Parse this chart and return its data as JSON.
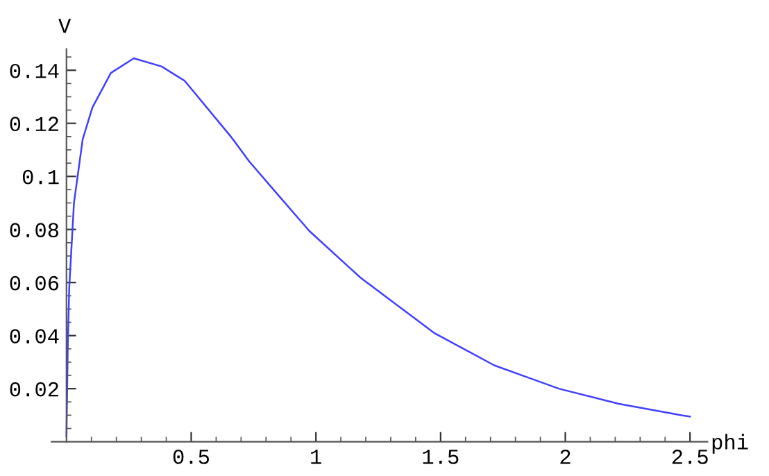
{
  "chart_data": {
    "type": "line",
    "xlabel": "phi",
    "ylabel": "V",
    "x": [
      0,
      0.005,
      0.011,
      0.03,
      0.065,
      0.104,
      0.178,
      0.27,
      0.382,
      0.474,
      0.659,
      0.733,
      0.844,
      0.974,
      1.178,
      1.474,
      1.715,
      1.974,
      2.215,
      2.47,
      2.5
    ],
    "series": [
      {
        "color": "#4040ff",
        "values": [
          0.002,
          0.035,
          0.058,
          0.09,
          0.114,
          0.126,
          0.139,
          0.1445,
          0.1414,
          0.136,
          0.115,
          0.1056,
          0.0935,
          0.0794,
          0.0619,
          0.041,
          0.0288,
          0.02,
          0.0143,
          0.0099,
          0.0095
        ]
      }
    ],
    "xlim": [
      -0.06,
      2.57
    ],
    "ylim": [
      0,
      0.148
    ],
    "xticks": [
      0.5,
      1,
      1.5,
      2,
      2.5
    ],
    "yticks": [
      0.02,
      0.04,
      0.06,
      0.08,
      0.1,
      0.12,
      0.14
    ],
    "grid": false,
    "legend": false,
    "marker": "none",
    "line_style": "solid"
  }
}
